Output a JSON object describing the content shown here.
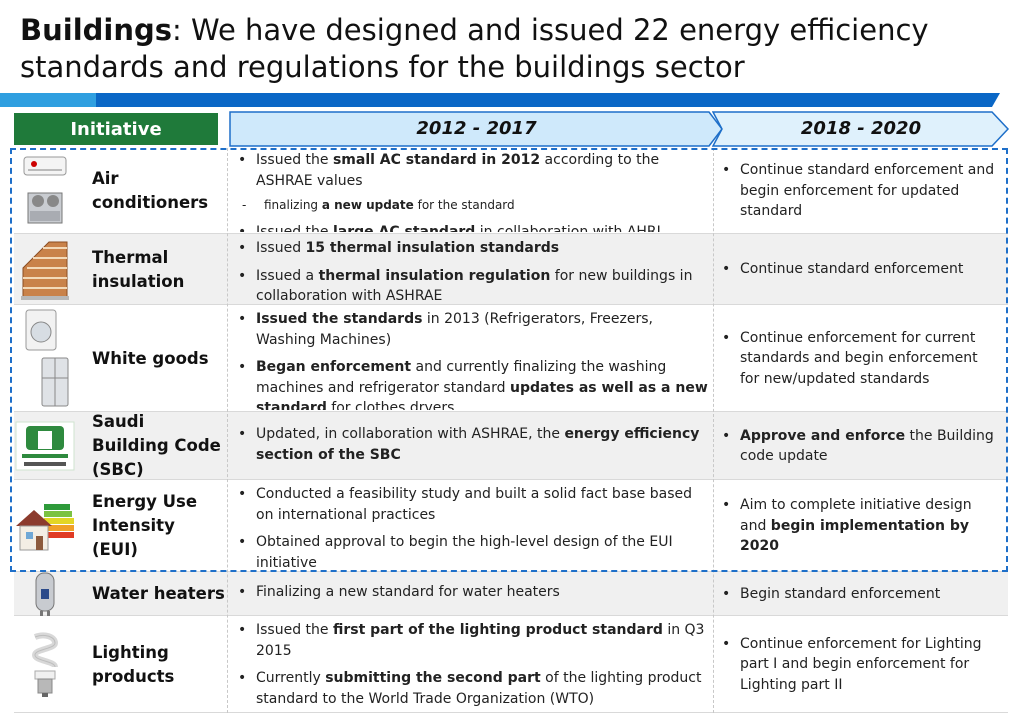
{
  "title": {
    "bold": "Buildings",
    "rest": ": We have designed and issued 22 energy efficiency standards and regulations for the buildings sector"
  },
  "headers": {
    "initiative": "Initiative",
    "phase1": "2012 - 2017",
    "phase2": "2018 - 2020"
  },
  "colors": {
    "initiative_header": "#1f7a3a",
    "phase1_fill": "#cfe9fb",
    "phase2_fill": "#dff1fc",
    "phase_border": "#1e6fc9",
    "band_light": "#2f9fe0",
    "band_dark": "#0a67c6",
    "row_shade": "#f0f0f0",
    "dashed_box": "#1e6fc9"
  },
  "rows": [
    {
      "icon": "air-conditioner-icon",
      "name": "Air conditioners",
      "p1": [
        {
          "a": "Issued the ",
          "b": "small AC standard in 2012",
          "c": " according to the ASHRAE values"
        },
        {
          "sub": true,
          "a": "finalizing ",
          "b": "a new update",
          "c": " for the standard"
        },
        {
          "a": "Issued the ",
          "b": "large AC standard",
          "c": " in collaboration with AHRI"
        }
      ],
      "p2": [
        {
          "a": "Continue standard enforcement and begin enforcement for updated standard",
          "b": "",
          "c": ""
        }
      ]
    },
    {
      "icon": "brick-wall-icon",
      "name": "Thermal insulation",
      "p1": [
        {
          "a": "Issued ",
          "b": "15 thermal insulation standards",
          "c": ""
        },
        {
          "a": "Issued a ",
          "b": "thermal insulation regulation",
          "c": " for new buildings in collaboration with ASHRAE"
        }
      ],
      "p2": [
        {
          "a": "Continue standard enforcement",
          "b": "",
          "c": ""
        }
      ]
    },
    {
      "icon": "washing-machine-refrigerator-icon",
      "name": "White goods",
      "p1": [
        {
          "a": "",
          "b": "Issued the standards",
          "c": " in 2013 (Refrigerators, Freezers, Washing Machines)"
        },
        {
          "a": "",
          "b": "Began enforcement",
          "c": " and currently finalizing the washing machines and refrigerator standard ",
          "d": "updates as well as a new standard",
          "e": " for clothes dryers"
        }
      ],
      "p2": [
        {
          "a": "Continue enforcement for current standards and begin enforcement for new/updated standards",
          "b": "",
          "c": ""
        }
      ]
    },
    {
      "icon": "saudi-building-code-logo",
      "name": "Saudi Building Code (SBC)",
      "p1": [
        {
          "a": "Updated, in collaboration with ASHRAE, the ",
          "b": "energy efficiency section of the SBC",
          "c": ""
        }
      ],
      "p2": [
        {
          "a": "",
          "b": "Approve and enforce",
          "c": " the Building code update"
        }
      ]
    },
    {
      "icon": "energy-rating-house-icon",
      "name": "Energy Use Intensity (EUI)",
      "p1": [
        {
          "a": "Conducted a feasibility study and built a solid fact base based on international practices",
          "b": "",
          "c": ""
        },
        {
          "a": "Obtained approval to begin the high-level design of the EUI initiative",
          "b": "",
          "c": ""
        }
      ],
      "p2": [
        {
          "a": "Aim to complete initiative design and ",
          "b": "begin implementation by 2020",
          "c": ""
        }
      ]
    },
    {
      "icon": "water-heater-icon",
      "name": "Water heaters",
      "p1": [
        {
          "a": "Finalizing a new standard for water heaters",
          "b": "",
          "c": ""
        }
      ],
      "p2": [
        {
          "a": "Begin standard enforcement",
          "b": "",
          "c": ""
        }
      ]
    },
    {
      "icon": "light-bulb-icon",
      "name": "Lighting products",
      "p1": [
        {
          "a": "Issued the ",
          "b": "first part of the lighting product standard",
          "c": " in Q3 2015"
        },
        {
          "a": "Currently ",
          "b": "submitting the second part",
          "c": " of the lighting product standard to the World Trade Organization (WTO)"
        }
      ],
      "p2": [
        {
          "a": "Continue enforcement for Lighting part I and begin enforcement for Lighting part II",
          "b": "",
          "c": ""
        }
      ]
    }
  ]
}
